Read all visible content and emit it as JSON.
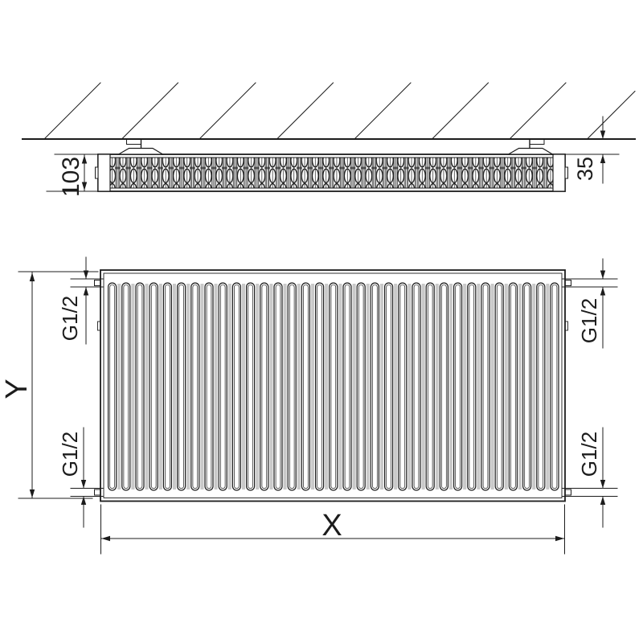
{
  "top_view": {
    "depth_dimension": "103",
    "wall_distance_dimension": "35"
  },
  "front_view": {
    "height_dimension": "Y",
    "width_dimension": "X",
    "connections": {
      "top_left": "G1/2",
      "top_right": "G1/2",
      "bottom_left": "G1/2",
      "bottom_right": "G1/2"
    }
  },
  "colors": {
    "line": "#1c1c1c",
    "background": "#ffffff",
    "shading": "#c9c9c9"
  }
}
